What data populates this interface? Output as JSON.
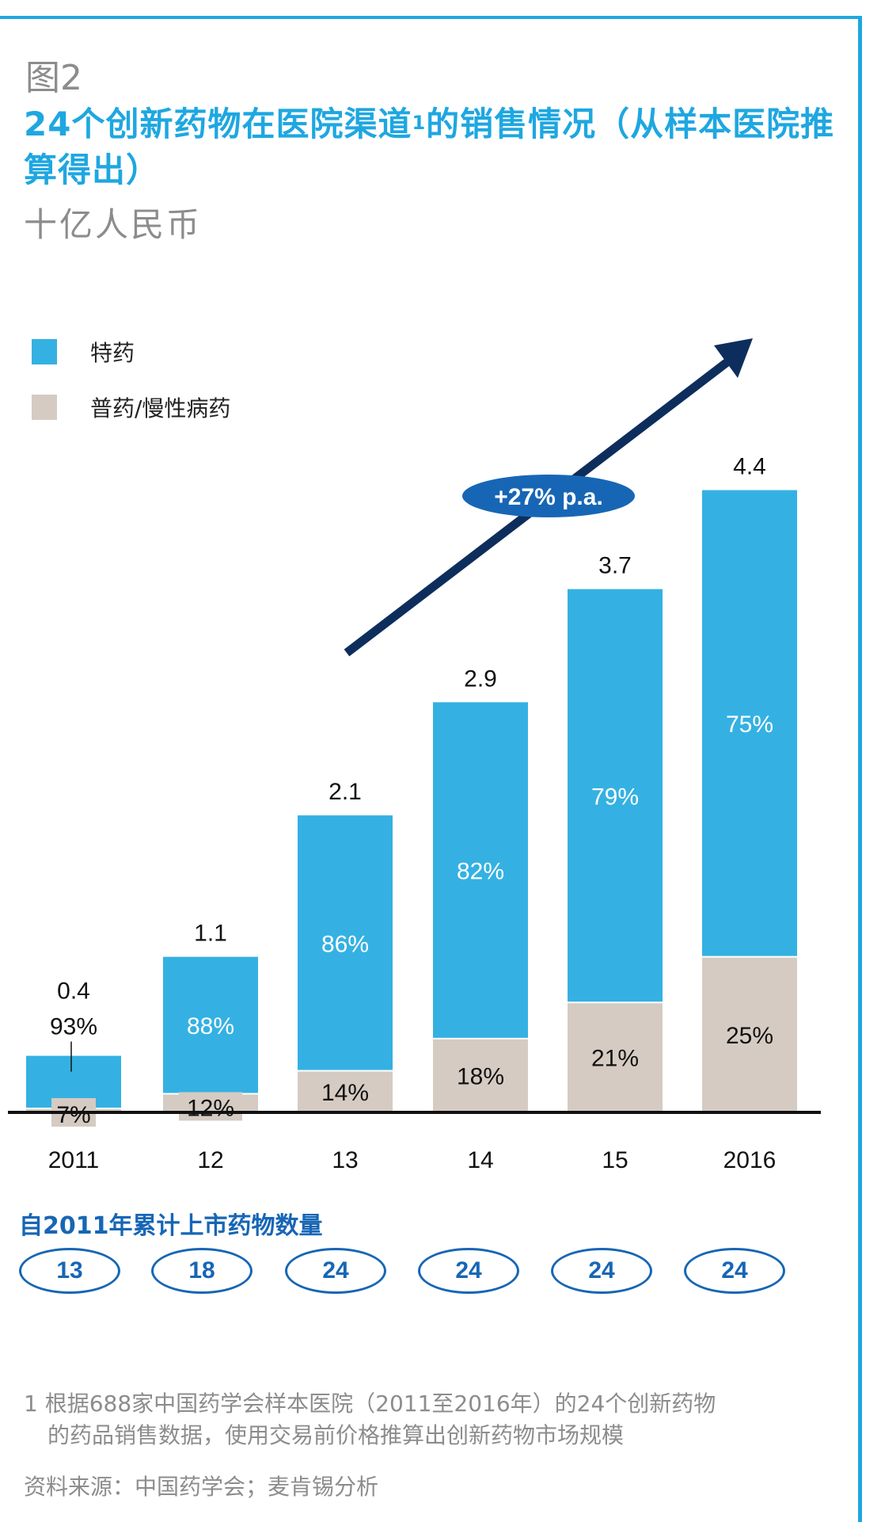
{
  "header": {
    "figure_number": "图2",
    "title_part1": "24个创新药物在医院渠道",
    "title_sup": "1",
    "title_part2": "的销售情况（从样本医院推算得出）",
    "unit": "十亿人民币"
  },
  "legend": [
    {
      "label": "特药",
      "color": "#34b1e2"
    },
    {
      "label": "普药/慢性病药",
      "color": "#d5cbc2"
    }
  ],
  "chart_data": {
    "type": "bar",
    "stacked": true,
    "categories": [
      "2011",
      "12",
      "13",
      "14",
      "15",
      "2016"
    ],
    "totals": [
      "0.4",
      "1.1",
      "2.1",
      "2.9",
      "3.7",
      "4.4"
    ],
    "total_values": [
      0.4,
      1.1,
      2.1,
      2.9,
      3.7,
      4.4
    ],
    "series": [
      {
        "name": "普药/慢性病药",
        "color": "#d5cbc2",
        "share": [
          7,
          12,
          14,
          18,
          21,
          25
        ],
        "labels": [
          "7%",
          "12%",
          "14%",
          "18%",
          "21%",
          "25%"
        ]
      },
      {
        "name": "特药",
        "color": "#34b1e2",
        "share": [
          93,
          88,
          86,
          82,
          79,
          75
        ],
        "labels": [
          "93%",
          "88%",
          "86%",
          "82%",
          "79%",
          "75%"
        ]
      }
    ],
    "ylim": [
      0,
      4.4
    ],
    "growth_label": "+27% p.a."
  },
  "cumulative": {
    "title": "自2011年累计上市药物数量",
    "values": [
      "13",
      "18",
      "24",
      "24",
      "24",
      "24"
    ]
  },
  "footnote": {
    "line1": "1 根据688家中国药学会样本医院（2011至2016年）的24个创新药物",
    "line2": "的药品销售数据，使用交易前价格推算出创新药物市场规模"
  },
  "source": "资料来源：中国药学会；麦肯锡分析",
  "colors": {
    "accent": "#1ea7e1",
    "dark_blue": "#0d2e5c",
    "oval_blue": "#1766b5"
  }
}
